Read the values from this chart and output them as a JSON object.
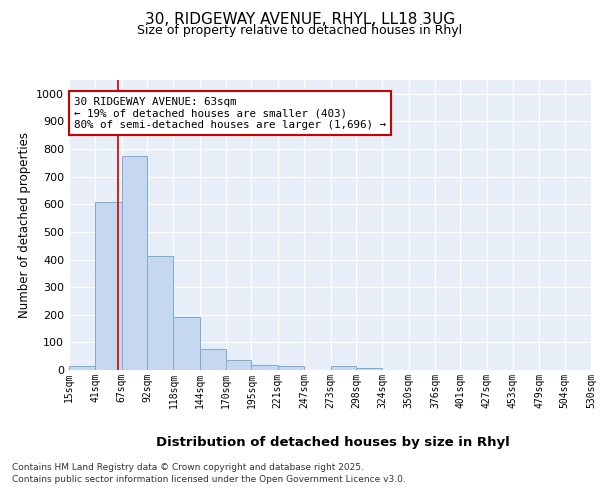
{
  "title_line1": "30, RIDGEWAY AVENUE, RHYL, LL18 3UG",
  "title_line2": "Size of property relative to detached houses in Rhyl",
  "xlabel": "Distribution of detached houses by size in Rhyl",
  "ylabel": "Number of detached properties",
  "bar_edges": [
    15,
    41,
    67,
    92,
    118,
    144,
    170,
    195,
    221,
    247,
    273,
    298,
    324,
    350,
    376,
    401,
    427,
    453,
    479,
    504,
    530
  ],
  "bar_values": [
    15,
    607,
    775,
    413,
    192,
    77,
    38,
    18,
    15,
    0,
    13,
    7,
    0,
    0,
    0,
    0,
    0,
    0,
    0,
    0
  ],
  "bar_color": "#c5d8f0",
  "bar_edge_color": "#7aadd4",
  "bar_linewidth": 0.7,
  "red_line_x": 63,
  "annotation_text": "30 RIDGEWAY AVENUE: 63sqm\n← 19% of detached houses are smaller (403)\n80% of semi-detached houses are larger (1,696) →",
  "annotation_box_color": "#ffffff",
  "annotation_edge_color": "#cc0000",
  "ylim_max": 1050,
  "yticks": [
    0,
    100,
    200,
    300,
    400,
    500,
    600,
    700,
    800,
    900,
    1000
  ],
  "background_color": "#e8eef8",
  "grid_color": "#ffffff",
  "fig_background": "#ffffff",
  "footer_line1": "Contains HM Land Registry data © Crown copyright and database right 2025.",
  "footer_line2": "Contains public sector information licensed under the Open Government Licence v3.0."
}
